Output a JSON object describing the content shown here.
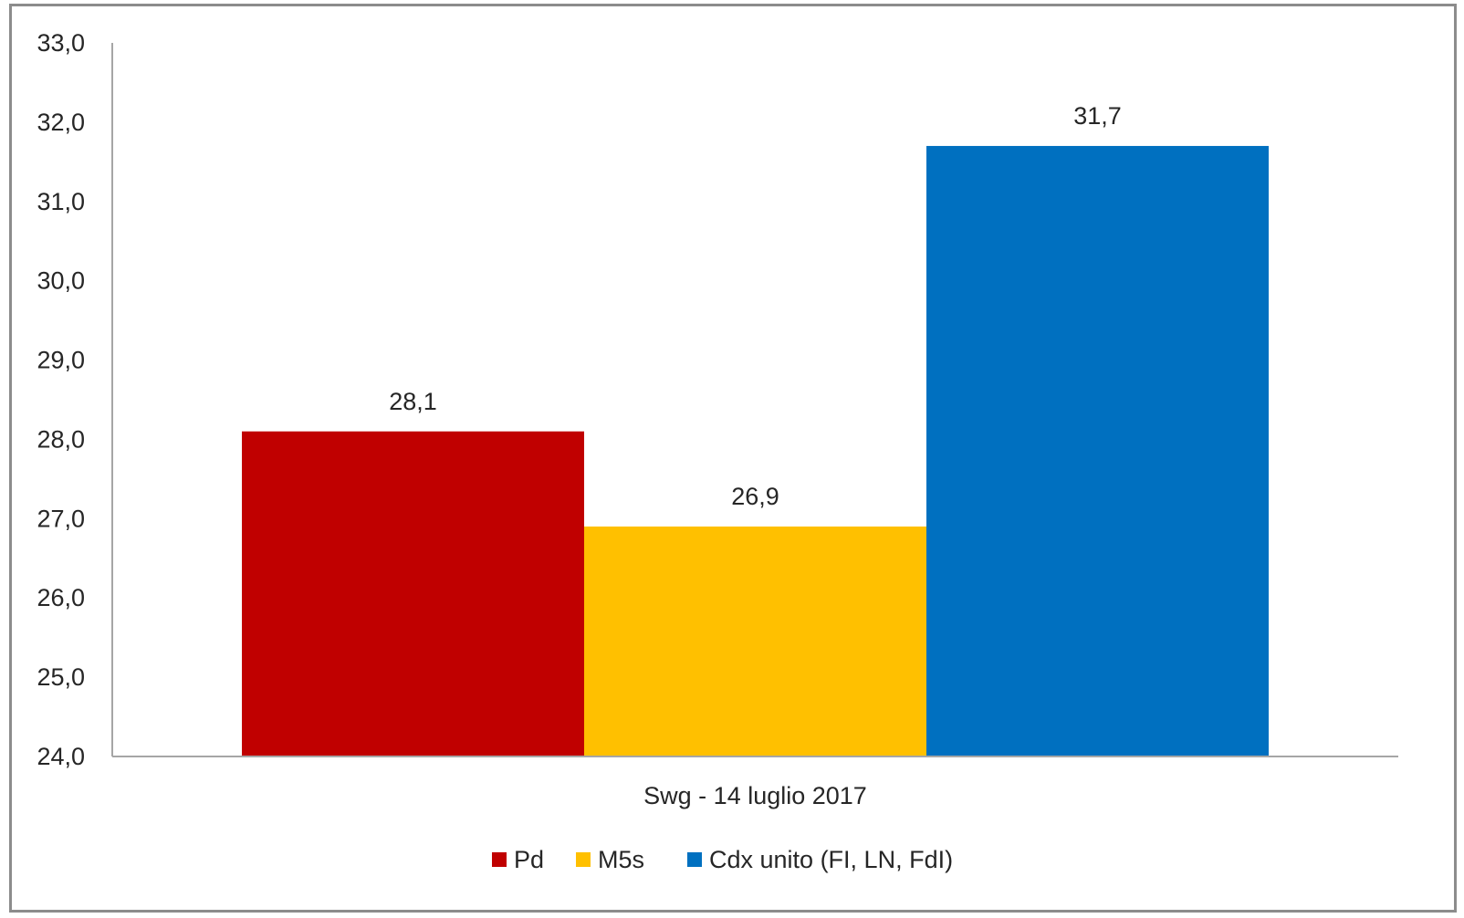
{
  "chart_data": {
    "type": "bar",
    "categories": [
      "Swg - 14 luglio 2017"
    ],
    "series": [
      {
        "name": "Pd",
        "values": [
          28.1
        ],
        "value_labels": [
          "28,1"
        ],
        "color": "#C00000"
      },
      {
        "name": "M5s",
        "values": [
          26.9
        ],
        "value_labels": [
          "26,9"
        ],
        "color": "#FFC000"
      },
      {
        "name": "Cdx unito (FI, LN, FdI)",
        "values": [
          31.7
        ],
        "value_labels": [
          "31,7"
        ],
        "color": "#0070C0"
      }
    ],
    "ylim": [
      24.0,
      33.0
    ],
    "yticks": [
      24.0,
      25.0,
      26.0,
      27.0,
      28.0,
      29.0,
      30.0,
      31.0,
      32.0,
      33.0
    ],
    "ytick_labels": [
      "24,0",
      "25,0",
      "26,0",
      "27,0",
      "28,0",
      "29,0",
      "30,0",
      "31,0",
      "32,0",
      "33,0"
    ],
    "title": "",
    "xlabel": "",
    "ylabel": "",
    "grid": false,
    "legend_position": "bottom"
  }
}
